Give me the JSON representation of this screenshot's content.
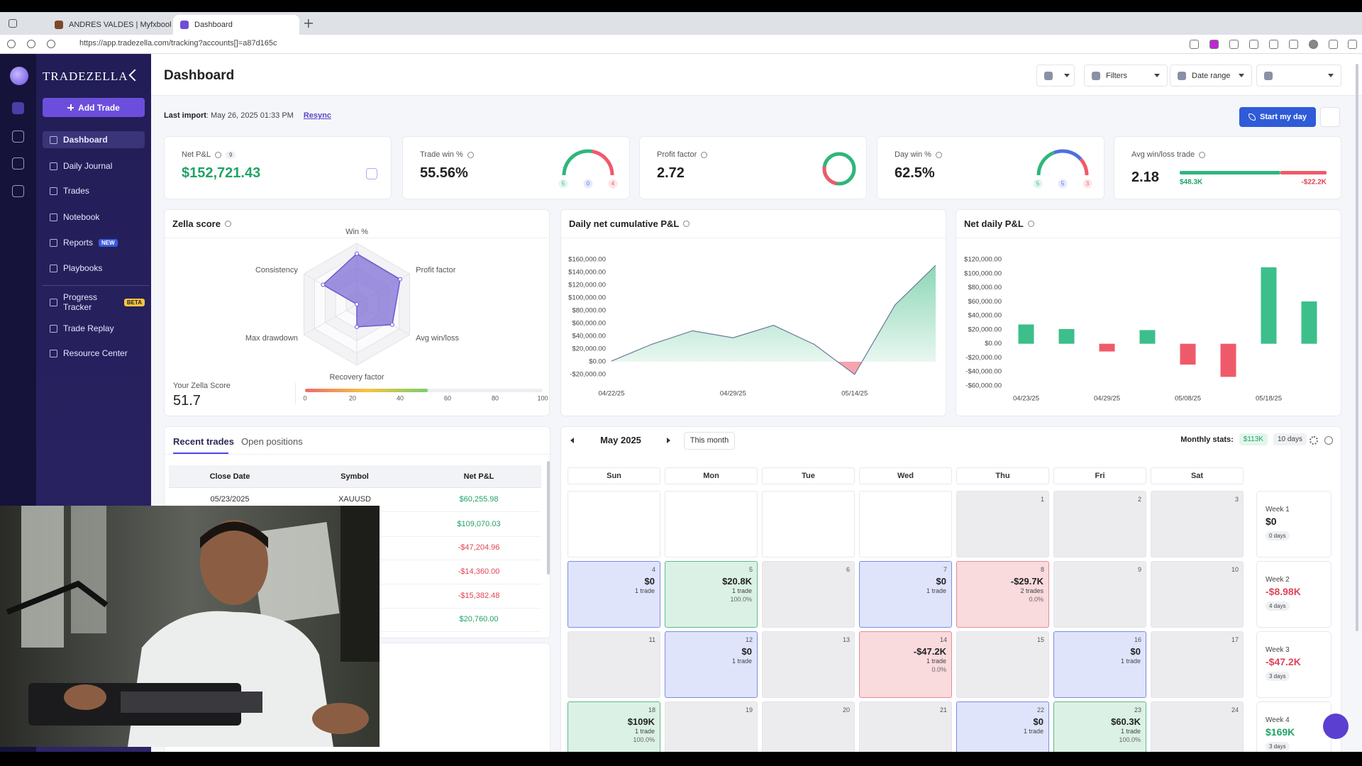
{
  "browser": {
    "tabs": [
      "ANDRES VALDES | Myfxbook",
      "Dashboard"
    ],
    "url": "https://app.tradezella.com/tracking?accounts[]=a87d165c"
  },
  "sidebar": {
    "brand": "TRADEZELLA",
    "add_trade": "Add Trade",
    "nav": [
      {
        "label": "Dashboard"
      },
      {
        "label": "Daily Journal"
      },
      {
        "label": "Trades"
      },
      {
        "label": "Notebook"
      },
      {
        "label": "Reports",
        "badge": "NEW"
      },
      {
        "label": "Playbooks"
      },
      {
        "label": "Progress Tracker",
        "badge": "BETA"
      },
      {
        "label": "Trade Replay"
      },
      {
        "label": "Resource Center"
      }
    ]
  },
  "header": {
    "title": "Dashboard",
    "filters": "Filters",
    "date_range": "Date range",
    "last_import_label": "Last import",
    "last_import": ": May 26, 2025 01:33 PM",
    "resync": "Resync",
    "start_day": "Start my day"
  },
  "stats": [
    {
      "label": "Net P&L",
      "badge": "9",
      "value": "$152,721.43"
    },
    {
      "label": "Trade win %",
      "value": "55.56%",
      "gauge": [
        5,
        0,
        4
      ]
    },
    {
      "label": "Profit factor",
      "value": "2.72"
    },
    {
      "label": "Day win %",
      "value": "62.5%",
      "gauge": [
        5,
        5,
        3
      ]
    },
    {
      "label": "Avg win/loss trade",
      "value": "2.18",
      "bar": {
        "values": [
          48300,
          -22200
        ],
        "value_labels": [
          "$48.3K",
          "-$22.2K"
        ]
      }
    }
  ],
  "zella": {
    "title": "Zella score",
    "axes": [
      "Win %",
      "Profit factor",
      "Avg win/loss",
      "Recovery factor",
      "Max drawdown",
      "Consistency"
    ],
    "values": [
      83,
      82,
      67,
      37,
      0,
      64
    ],
    "score_label": "Your Zella Score",
    "score": 51.7,
    "scale_ticks": [
      0,
      20,
      40,
      60,
      80,
      100
    ]
  },
  "cumulative": {
    "type": "area",
    "title": "Daily net cumulative P&L",
    "categories": [
      "04/22/25",
      null,
      null,
      "04/29/25",
      null,
      null,
      "05/14/25",
      null,
      null
    ],
    "values": [
      1000,
      27500,
      48500,
      37500,
      57000,
      27300,
      -19900,
      89100,
      151000
    ],
    "ylim": [
      -20000,
      160000
    ],
    "yticks": [
      {
        "value": -20000,
        "label": "-$20,000.00"
      },
      {
        "value": 0,
        "label": "$0.00"
      },
      {
        "value": 20000,
        "label": "$20,000.00"
      },
      {
        "value": 40000,
        "label": "$40,000.00"
      },
      {
        "value": 60000,
        "label": "$60,000.00"
      },
      {
        "value": 80000,
        "label": "$80,000.00"
      },
      {
        "value": 100000,
        "label": "$100,000.00"
      },
      {
        "value": 120000,
        "label": "$120,000.00"
      },
      {
        "value": 140000,
        "label": "$140,000.00"
      },
      {
        "value": 160000,
        "label": "$160,000.00"
      }
    ]
  },
  "net_daily": {
    "type": "bar",
    "title": "Net daily P&L",
    "categories": [
      "04/23/25",
      null,
      "04/29/25",
      null,
      "05/08/25",
      null,
      "05/18/25",
      null
    ],
    "values": [
      27500,
      21000,
      -11000,
      19500,
      -29700,
      -47200,
      109000,
      60300
    ],
    "ylim": [
      -60000,
      120000
    ],
    "yticks": [
      {
        "value": -60000,
        "label": "-$60,000.00"
      },
      {
        "value": -40000,
        "label": "-$40,000.00"
      },
      {
        "value": -20000,
        "label": "-$20,000.00"
      },
      {
        "value": 0,
        "label": "$0.00"
      },
      {
        "value": 20000,
        "label": "$20,000.00"
      },
      {
        "value": 40000,
        "label": "$40,000.00"
      },
      {
        "value": 60000,
        "label": "$60,000.00"
      },
      {
        "value": 80000,
        "label": "$80,000.00"
      },
      {
        "value": 100000,
        "label": "$100,000.00"
      },
      {
        "value": 120000,
        "label": "$120,000.00"
      }
    ]
  },
  "trades": {
    "tabs": [
      "Recent trades",
      "Open positions"
    ],
    "columns": [
      "Close Date",
      "Symbol",
      "Net P&L"
    ],
    "rows": [
      {
        "date": "05/23/2025",
        "symbol": "XAUUSD",
        "pnl": "$60,255.98"
      },
      {
        "pnl": "$109,070.03"
      },
      {
        "pnl": "-$47,204.96"
      },
      {
        "pnl": "-$14,360.00"
      },
      {
        "pnl": "-$15,382.48"
      },
      {
        "pnl": "$20,760.00"
      }
    ]
  },
  "calendar": {
    "month": "May 2025",
    "this_month": "This month",
    "monthly_stats_label": "Monthly stats:",
    "monthly_pnl": "$113K",
    "monthly_days": "10 days",
    "weekdays": [
      "Sun",
      "Mon",
      "Tue",
      "Wed",
      "Thu",
      "Fri",
      "Sat"
    ],
    "days": [
      {
        "day": 1
      },
      {
        "day": 2
      },
      {
        "day": 3
      },
      {
        "day": 4,
        "pnl": "$0",
        "trades": "1 trade"
      },
      {
        "day": 5,
        "pnl": "$20.8K",
        "trades": "1 trade",
        "win_rate": "100.0%"
      },
      {
        "day": 6
      },
      {
        "day": 7,
        "pnl": "$0",
        "trades": "1 trade"
      },
      {
        "day": 8,
        "pnl": "-$29.7K",
        "trades": "2 trades",
        "win_rate": "0.0%"
      },
      {
        "day": 9
      },
      {
        "day": 10
      },
      {
        "day": 11
      },
      {
        "day": 12,
        "pnl": "$0",
        "trades": "1 trade"
      },
      {
        "day": 13
      },
      {
        "day": 14,
        "pnl": "-$47.2K",
        "trades": "1 trade",
        "win_rate": "0.0%"
      },
      {
        "day": 15
      },
      {
        "day": 16,
        "pnl": "$0",
        "trades": "1 trade"
      },
      {
        "day": 17
      },
      {
        "day": 18,
        "pnl": "$109K",
        "trades": "1 trade",
        "win_rate": "100.0%"
      },
      {
        "day": 19
      },
      {
        "day": 20
      },
      {
        "day": 21
      },
      {
        "day": 22,
        "pnl": "$0",
        "trades": "1 trade"
      },
      {
        "day": 23,
        "pnl": "$60.3K",
        "trades": "1 trade",
        "win_rate": "100.0%"
      },
      {
        "day": 24
      }
    ],
    "weeks": [
      {
        "label": "Week 1",
        "pnl": "$0",
        "days": "0 days"
      },
      {
        "label": "Week 2",
        "pnl": "-$8.98K",
        "days": "4 days"
      },
      {
        "label": "Week 3",
        "pnl": "-$47.2K",
        "days": "3 days"
      },
      {
        "label": "Week 4",
        "pnl": "$169K",
        "days": "3 days"
      }
    ]
  }
}
